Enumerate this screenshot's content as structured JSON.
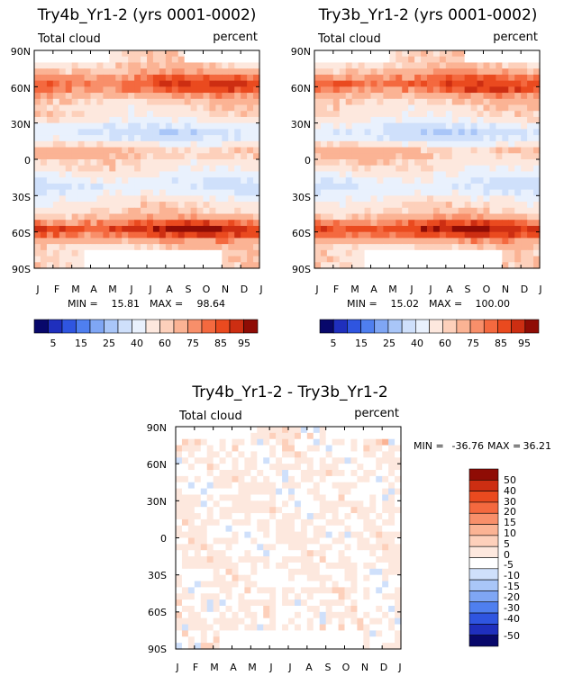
{
  "colors": {
    "seq": [
      "#08086b",
      "#1f2fbd",
      "#2f55e0",
      "#4f7fef",
      "#7fa6f4",
      "#a9c6f8",
      "#cfe0fb",
      "#e9f1fd",
      "#fde8de",
      "#fdd0bb",
      "#fbb394",
      "#f88f6a",
      "#f4693f",
      "#ea4a1f",
      "#cd2e12",
      "#8f0c05"
    ],
    "diff": [
      "#08086b",
      "#1f2fbd",
      "#2f55e0",
      "#4f7fef",
      "#7fa6f4",
      "#a9c6f8",
      "#cfe0fb",
      "#ffffff",
      "#fde8de",
      "#fdd0bb",
      "#fbb394",
      "#f88f6a",
      "#f4693f",
      "#ea4a1f",
      "#cd2e12",
      "#8f0c05"
    ]
  },
  "chart_data": [
    {
      "type": "heatmap",
      "title": "Try4b_Yr1-2 (yrs 0001-0002)",
      "field_label": "Total cloud",
      "units": "percent",
      "x_ticks": [
        "J",
        "F",
        "M",
        "A",
        "M",
        "J",
        "J",
        "A",
        "S",
        "O",
        "N",
        "D",
        "J"
      ],
      "y_ticks": [
        "90N",
        "60N",
        "30N",
        "0",
        "30S",
        "60S",
        "90S"
      ],
      "ylim": [
        -90,
        90
      ],
      "min_label": "MIN =",
      "min": "15.81",
      "max_label": "MAX =",
      "max": "98.64",
      "colorbar_labels": [
        "5",
        "15",
        "25",
        "40",
        "60",
        "75",
        "85",
        "95"
      ],
      "colormap": "sequential",
      "seed": 11
    },
    {
      "type": "heatmap",
      "title": "Try3b_Yr1-2 (yrs 0001-0002)",
      "field_label": "Total cloud",
      "units": "percent",
      "x_ticks": [
        "J",
        "F",
        "M",
        "A",
        "M",
        "J",
        "J",
        "A",
        "S",
        "O",
        "N",
        "D",
        "J"
      ],
      "y_ticks": [
        "90N",
        "60N",
        "30N",
        "0",
        "30S",
        "60S",
        "90S"
      ],
      "ylim": [
        -90,
        90
      ],
      "min_label": "MIN =",
      "min": "15.02",
      "max_label": "MAX =",
      "max": "100.00",
      "colorbar_labels": [
        "5",
        "15",
        "25",
        "40",
        "60",
        "75",
        "85",
        "95"
      ],
      "colormap": "sequential",
      "seed": 23
    },
    {
      "type": "heatmap",
      "title": "Try4b_Yr1-2 - Try3b_Yr1-2",
      "field_label": "Total cloud",
      "units": "percent",
      "x_ticks": [
        "J",
        "F",
        "M",
        "A",
        "M",
        "J",
        "J",
        "A",
        "S",
        "O",
        "N",
        "D",
        "J"
      ],
      "y_ticks": [
        "90N",
        "60N",
        "30N",
        "0",
        "30S",
        "60S",
        "90S"
      ],
      "ylim": [
        -90,
        90
      ],
      "min_label": "MIN =",
      "min": "-36.76",
      "max_label": "MAX =",
      "max": "36.21",
      "colorbar_labels": [
        "50",
        "40",
        "30",
        "20",
        "15",
        "10",
        "5",
        "0",
        "-5",
        "-10",
        "-15",
        "-20",
        "-30",
        "-40",
        "-50"
      ],
      "colormap": "diverging",
      "seed": 37
    }
  ]
}
